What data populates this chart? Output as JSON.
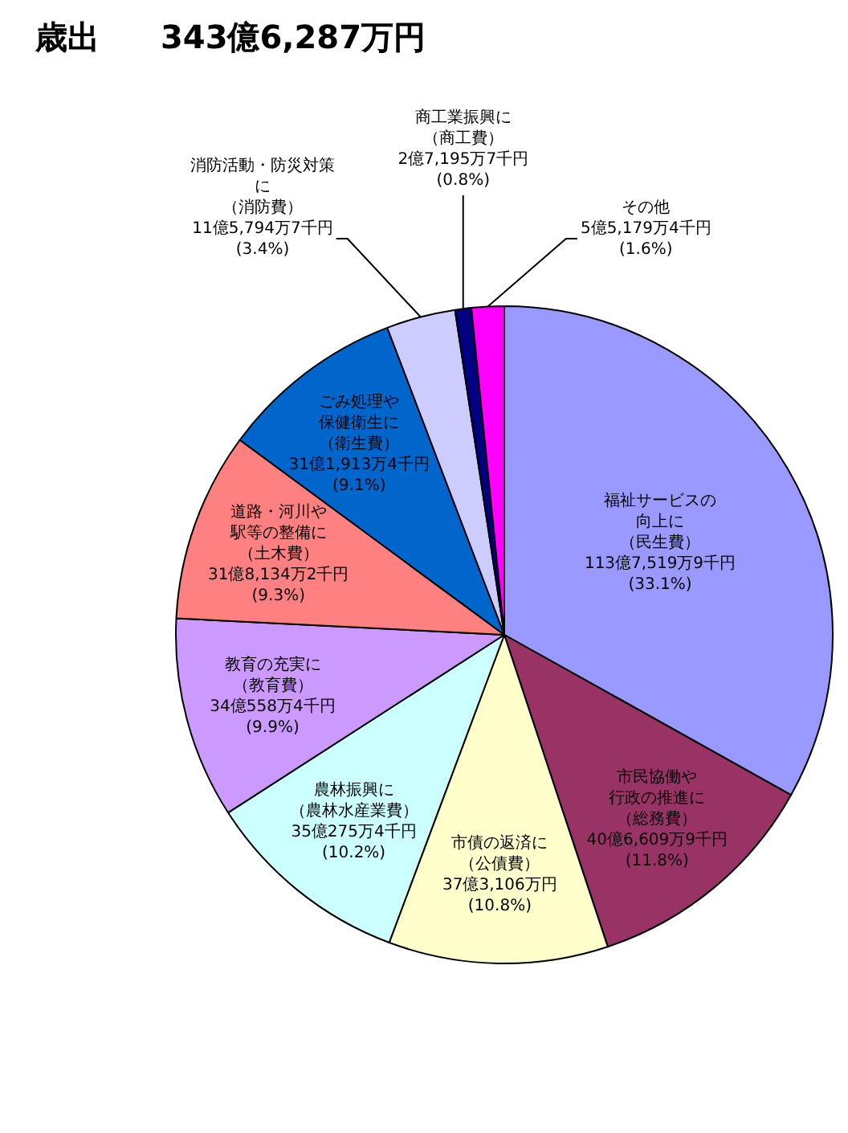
{
  "chart_data": {
    "type": "pie",
    "title": "歳出",
    "subtitle": "343億6,287万円",
    "categories": [
      "福祉サービスの向上に（民生費）",
      "市民協働や行政の推進に（総務費）",
      "市債の返済に（公債費）",
      "農林振興に（農林水産業費）",
      "教育の充実に（教育費）",
      "道路・河川や駅等の整備に（土木費）",
      "ごみ処理や保健衛生に（衛生費）",
      "消防活動・防災対策に（消防費）",
      "商工業振興に（商工費）",
      "その他"
    ],
    "values": [
      33.1,
      11.8,
      10.8,
      10.2,
      9.9,
      9.3,
      9.1,
      3.4,
      0.8,
      1.6
    ],
    "colors": [
      "#9999ff",
      "#993366",
      "#ffffcc",
      "#ccffff",
      "#cc99ff",
      "#ff8080",
      "#0066cc",
      "#ccccff",
      "#000080",
      "#ff00ff"
    ],
    "value_labels": [
      "113億7,519万9千円\n(33.1%)",
      "40億6,609万9千円\n(11.8%)",
      "37億3,106万円\n(10.8%)",
      "35億275万4千円\n(10.2%)",
      "34億558万4千円\n(9.9%)",
      "31億8,134万2千円\n(9.3%)",
      "31億1,913万4千円\n(9.1%)",
      "11億5,794万7千円\n(3.4%)",
      "2億7,195万7千円\n(0.8%)",
      "5億5,179万4千円\n(1.6%)"
    ]
  }
}
